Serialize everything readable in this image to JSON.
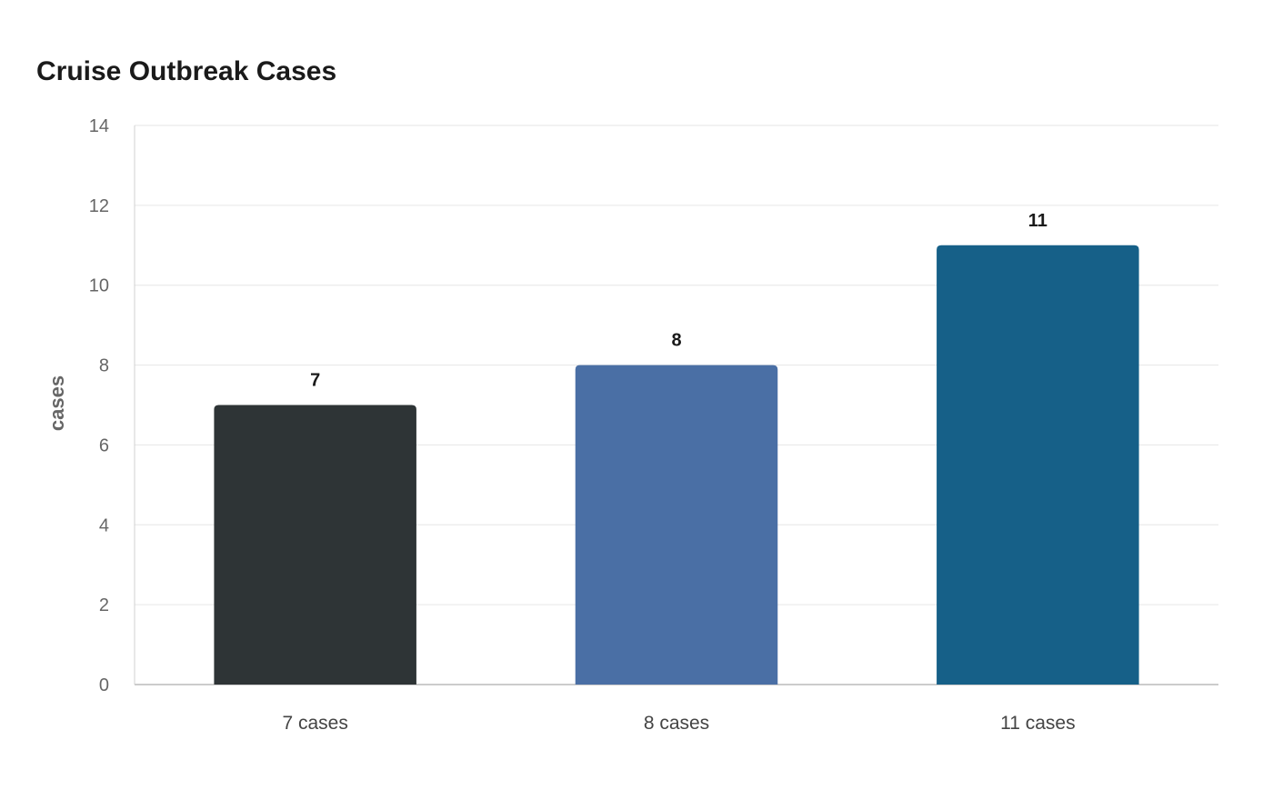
{
  "chart_data": {
    "type": "bar",
    "title": "Cruise Outbreak Cases",
    "xlabel": "",
    "ylabel": "cases",
    "categories": [
      "7 cases",
      "8 cases",
      "11 cases"
    ],
    "values": [
      7,
      8,
      11
    ],
    "value_labels": [
      "7",
      "8",
      "11"
    ],
    "colors": [
      "#2e3436",
      "#4a6fa5",
      "#166088"
    ],
    "ylim": [
      0,
      14
    ],
    "yticks": [
      0,
      2,
      4,
      6,
      8,
      10,
      12,
      14
    ],
    "grid": true,
    "legend": "none"
  }
}
